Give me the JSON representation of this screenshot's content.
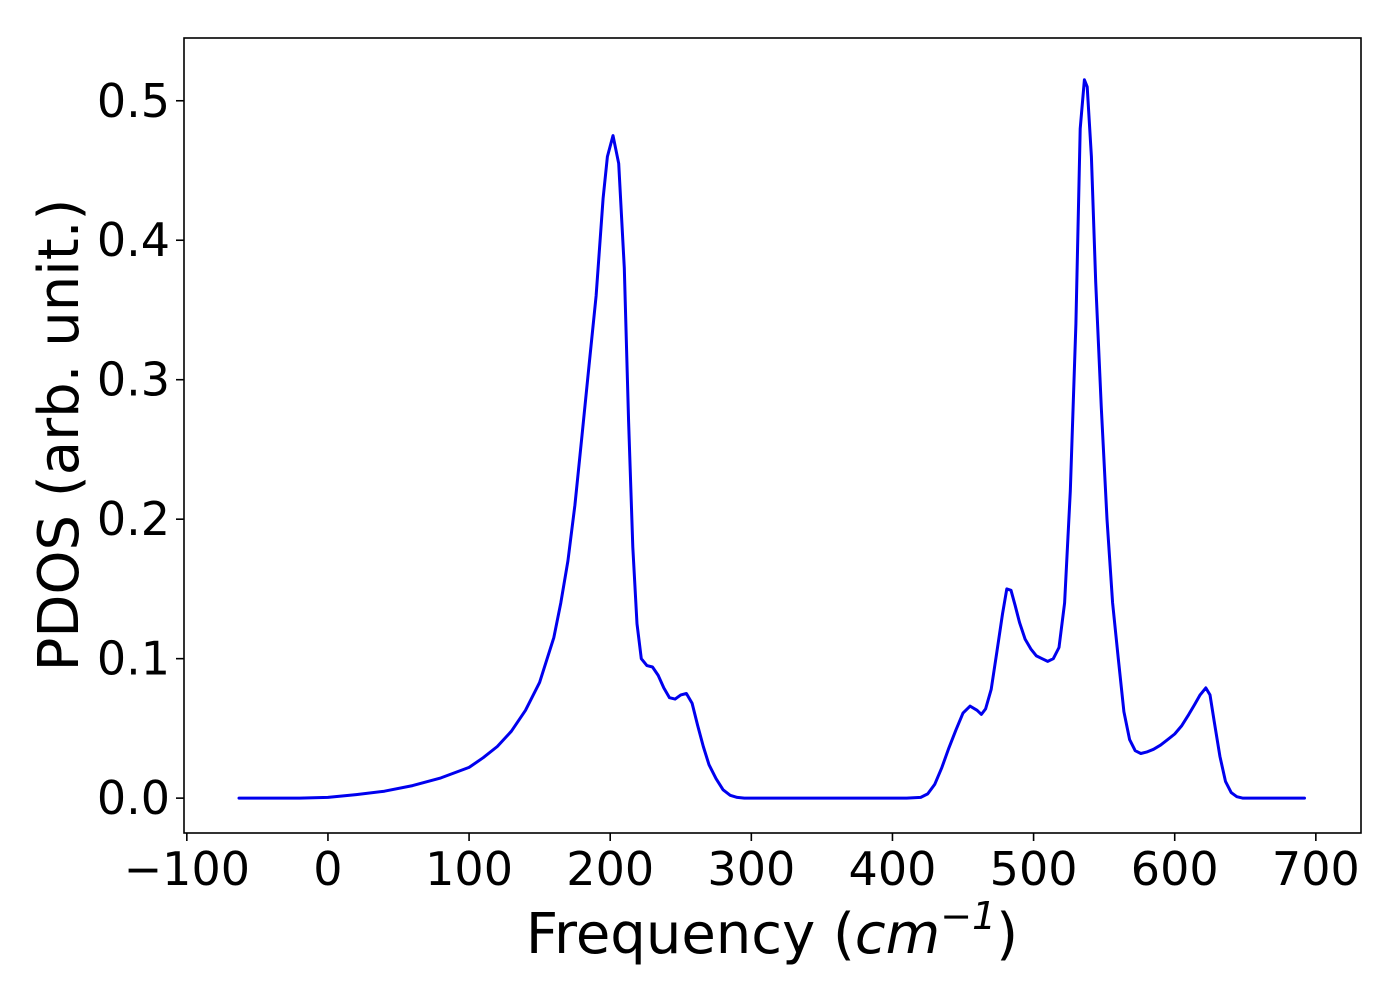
{
  "chart_data": {
    "type": "line",
    "title": "",
    "xlabel": "Frequency (cm⁻¹)",
    "xlabel_parts": {
      "prefix": "Frequency (",
      "unit_base": "cm",
      "unit_exp": "−1",
      "suffix": ")"
    },
    "ylabel": "PDOS (arb. unit.)",
    "xlim": [
      -102,
      732
    ],
    "ylim": [
      -0.025,
      0.545
    ],
    "xticks": [
      -100,
      0,
      100,
      200,
      300,
      400,
      500,
      600,
      700
    ],
    "xtick_labels": [
      "−100",
      "0",
      "100",
      "200",
      "300",
      "400",
      "500",
      "600",
      "700"
    ],
    "yticks": [
      0.0,
      0.1,
      0.2,
      0.3,
      0.4,
      0.5
    ],
    "ytick_labels": [
      "0.0",
      "0.1",
      "0.2",
      "0.3",
      "0.4",
      "0.5"
    ],
    "grid": false,
    "legend": "none",
    "series": [
      {
        "color": "#0000ee",
        "x": [
          -63,
          -40,
          -20,
          0,
          20,
          40,
          60,
          80,
          100,
          110,
          120,
          130,
          140,
          150,
          160,
          165,
          170,
          175,
          180,
          185,
          190,
          195,
          198,
          202,
          206,
          210,
          213,
          216,
          219,
          222,
          226,
          230,
          234,
          238,
          242,
          246,
          250,
          254,
          258,
          262,
          266,
          270,
          275,
          280,
          285,
          290,
          295,
          300,
          320,
          350,
          380,
          410,
          420,
          425,
          430,
          435,
          440,
          445,
          450,
          455,
          460,
          463,
          466,
          470,
          474,
          478,
          481,
          484,
          487,
          490,
          494,
          498,
          502,
          506,
          510,
          514,
          518,
          522,
          526,
          530,
          533,
          536,
          538,
          541,
          544,
          548,
          552,
          556,
          560,
          564,
          568,
          572,
          576,
          580,
          585,
          590,
          595,
          600,
          605,
          610,
          614,
          618,
          622,
          625,
          628,
          632,
          636,
          640,
          644,
          648,
          660,
          680,
          692
        ],
        "y": [
          0.0,
          0.0,
          0.0,
          0.0005,
          0.0025,
          0.005,
          0.009,
          0.0145,
          0.022,
          0.029,
          0.037,
          0.048,
          0.063,
          0.083,
          0.115,
          0.14,
          0.17,
          0.21,
          0.26,
          0.31,
          0.36,
          0.43,
          0.46,
          0.475,
          0.455,
          0.38,
          0.27,
          0.18,
          0.125,
          0.1,
          0.095,
          0.094,
          0.088,
          0.079,
          0.072,
          0.071,
          0.074,
          0.075,
          0.068,
          0.052,
          0.037,
          0.024,
          0.014,
          0.006,
          0.002,
          0.0005,
          0.0,
          0.0,
          0.0,
          0.0,
          0.0,
          0.0,
          0.0005,
          0.003,
          0.01,
          0.022,
          0.036,
          0.049,
          0.061,
          0.066,
          0.063,
          0.06,
          0.064,
          0.078,
          0.105,
          0.132,
          0.15,
          0.149,
          0.138,
          0.126,
          0.114,
          0.107,
          0.102,
          0.1,
          0.098,
          0.1,
          0.108,
          0.14,
          0.22,
          0.34,
          0.48,
          0.515,
          0.51,
          0.46,
          0.37,
          0.28,
          0.2,
          0.14,
          0.1,
          0.062,
          0.042,
          0.034,
          0.032,
          0.033,
          0.035,
          0.038,
          0.042,
          0.046,
          0.052,
          0.06,
          0.067,
          0.074,
          0.079,
          0.074,
          0.055,
          0.03,
          0.012,
          0.004,
          0.001,
          0.0,
          0.0,
          0.0,
          0.0
        ]
      }
    ]
  }
}
